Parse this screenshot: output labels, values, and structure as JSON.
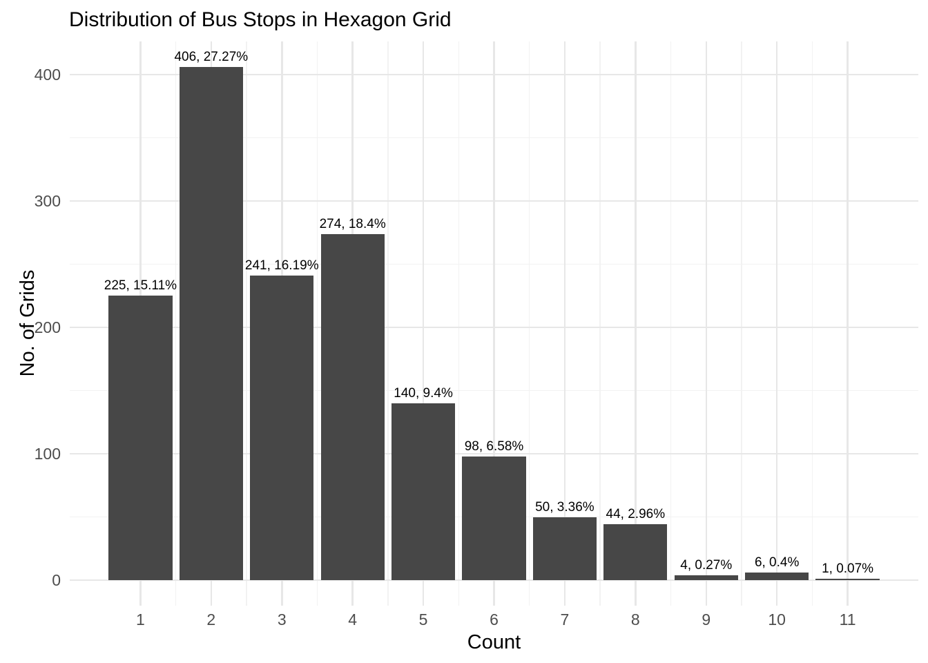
{
  "chart_data": {
    "type": "bar",
    "title": "Distribution of Bus Stops in Hexagon Grid",
    "xlabel": "Count",
    "ylabel": "No. of Grids",
    "categories": [
      "1",
      "2",
      "3",
      "4",
      "5",
      "6",
      "7",
      "8",
      "9",
      "10",
      "11"
    ],
    "values": [
      225,
      406,
      241,
      274,
      140,
      98,
      50,
      44,
      4,
      6,
      1
    ],
    "percentages": [
      15.11,
      27.27,
      16.19,
      18.4,
      9.4,
      6.58,
      3.36,
      2.96,
      0.27,
      0.4,
      0.07
    ],
    "bar_labels": [
      "225, 15.11%",
      "406, 27.27%",
      "241, 16.19%",
      "274, 18.4%",
      "140, 9.4%",
      "98, 6.58%",
      "50, 3.36%",
      "44, 2.96%",
      "4, 0.27%",
      "6, 0.4%",
      "1, 0.07%"
    ],
    "y_ticks": [
      0,
      100,
      200,
      300,
      400
    ],
    "y_minor_ticks": [
      50,
      150,
      250,
      350
    ],
    "ylim": [
      -20,
      426
    ],
    "grid": "on",
    "legend": "none",
    "colors": {
      "bar_fill": "#474747",
      "grid_major": "#e7e7e7",
      "grid_minor": "#f2f2f2",
      "tick_text": "#4d4d4d",
      "title_text": "#000000",
      "background": "#ffffff"
    }
  }
}
